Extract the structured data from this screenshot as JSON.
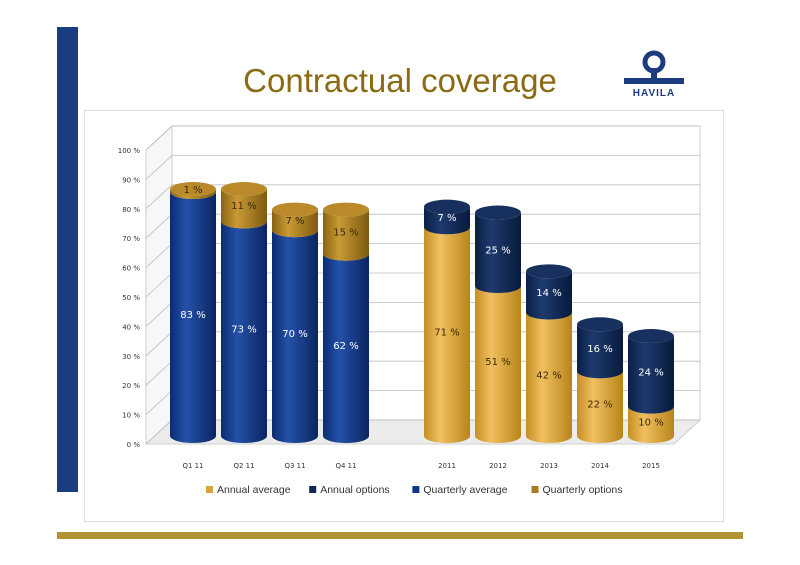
{
  "page": {
    "title": "Contractual coverage",
    "logo_text": "HAVILA",
    "colors": {
      "band": "#1b3c7f",
      "bottom_bar": "#b09433",
      "title": "#8a6a12",
      "annual_average": "#d9a53c",
      "annual_options": "#0f2752",
      "quarterly_average": "#10368a",
      "quarterly_options": "#a87c1c"
    }
  },
  "chart_data": {
    "type": "bar",
    "stacked": true,
    "style": "3d-cylinder",
    "grid": true,
    "ylim": [
      0,
      100
    ],
    "yticks": [
      "0 %",
      "10 %",
      "20 %",
      "30 %",
      "40 %",
      "50 %",
      "60 %",
      "70 %",
      "80 %",
      "90 %",
      "100 %"
    ],
    "legend_position": "bottom",
    "groups": [
      {
        "categories": [
          "Q1 11",
          "Q2 11",
          "Q3 11",
          "Q4 11"
        ],
        "series": [
          {
            "name": "Quarterly average",
            "values": [
              83,
              73,
              70,
              62
            ],
            "labels": [
              "83 %",
              "73 %",
              "70 %",
              "62 %"
            ]
          },
          {
            "name": "Quarterly options",
            "values": [
              1,
              11,
              7,
              15
            ],
            "labels": [
              "1 %",
              "11 %",
              "7 %",
              "15 %"
            ]
          }
        ]
      },
      {
        "categories": [
          "2011",
          "2012",
          "2013",
          "2014",
          "2015"
        ],
        "series": [
          {
            "name": "Annual average",
            "values": [
              71,
              51,
              42,
              22,
              10
            ],
            "labels": [
              "71 %",
              "51 %",
              "42 %",
              "22 %",
              "10 %"
            ]
          },
          {
            "name": "Annual options",
            "values": [
              7,
              25,
              14,
              16,
              24
            ],
            "labels": [
              "7 %",
              "25 %",
              "14 %",
              "16 %",
              "24 %"
            ]
          }
        ]
      }
    ],
    "legend": [
      "Annual average",
      "Annual options",
      "Quarterly average",
      "Quarterly options"
    ]
  }
}
